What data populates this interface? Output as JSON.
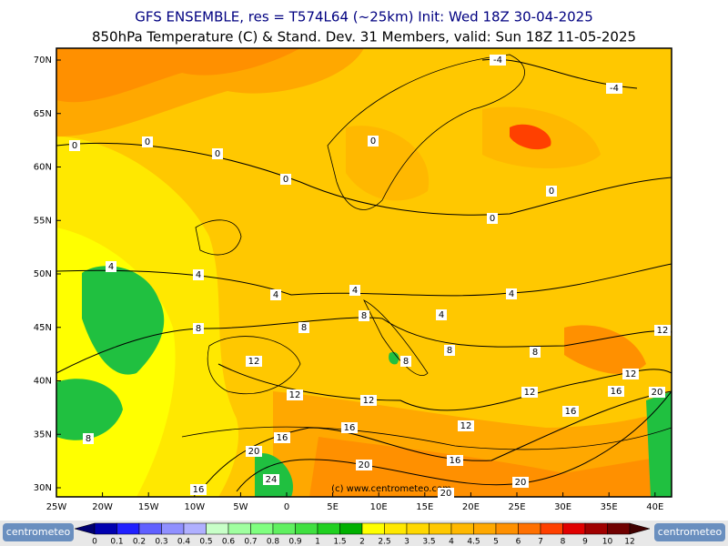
{
  "header": {
    "line1": "GFS ENSEMBLE, res = T574L64 (~25km)    Init: Wed 18Z 30-04-2025",
    "line2": "850hPa Temperature (C) & Stand. Dev.    31 Members, valid: Sun 18Z 11-05-2025"
  },
  "map": {
    "lat_labels": [
      "70N",
      "65N",
      "60N",
      "55N",
      "50N",
      "45N",
      "40N",
      "35N",
      "30N"
    ],
    "lon_labels": [
      "25W",
      "20W",
      "15W",
      "10W",
      "5W",
      "0",
      "5E",
      "10E",
      "15E",
      "20E",
      "25E",
      "30E",
      "35E",
      "40E"
    ],
    "contour_labels": [
      "-4",
      "-4",
      "0",
      "0",
      "0",
      "0",
      "0",
      "0",
      "0",
      "4",
      "4",
      "4",
      "4",
      "4",
      "4",
      "8",
      "8",
      "8",
      "8",
      "8",
      "8",
      "8",
      "12",
      "12",
      "12",
      "12",
      "12",
      "12",
      "12",
      "16",
      "16",
      "16",
      "16",
      "16",
      "16",
      "20",
      "20",
      "20",
      "20",
      "20",
      "24"
    ],
    "watermark": "(c) www.centrometeo.com"
  },
  "colorbar": {
    "labels": [
      "0",
      "0.1",
      "0.2",
      "0.3",
      "0.4",
      "0.5",
      "0.6",
      "0.7",
      "0.8",
      "0.9",
      "1",
      "1.5",
      "2",
      "2.5",
      "3",
      "3.5",
      "4",
      "4.5",
      "5",
      "6",
      "7",
      "8",
      "9",
      "10",
      "12"
    ],
    "colors": [
      "#000070",
      "#0000b0",
      "#2020ff",
      "#6060ff",
      "#9090ff",
      "#b0b0ff",
      "#c8ffc8",
      "#a0ffa0",
      "#80ff80",
      "#60f060",
      "#40e040",
      "#20d020",
      "#00b000",
      "#ffff00",
      "#ffe800",
      "#ffd800",
      "#ffc800",
      "#ffb800",
      "#ffa800",
      "#ff9000",
      "#ff7000",
      "#ff4000",
      "#e00000",
      "#a00000",
      "#700000",
      "#400000"
    ]
  },
  "footer": {
    "logo_left": "centrometeo",
    "logo_right": "centrometeo"
  }
}
